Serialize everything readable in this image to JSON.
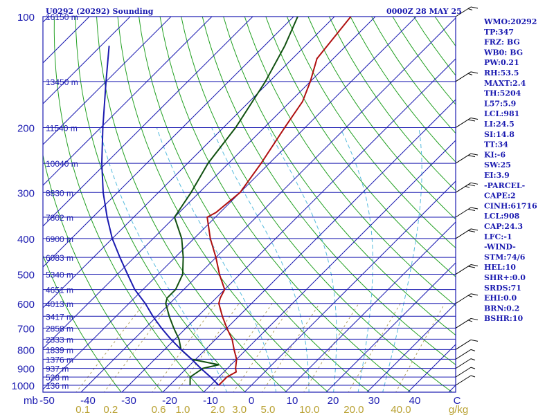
{
  "header": {
    "title": "U0292 (20292) Sounding",
    "time": "0000Z 28 MAY 25"
  },
  "indices": [
    "WMO:20292",
    "TP:347",
    "FRZ: BG",
    "WB0: BG",
    "PW:0.21",
    "RH:53.5",
    "MAXT:2.4",
    "TH:5204",
    "L57:5.9",
    "LCL:981",
    "LI:24.5",
    "SI:14.8",
    "TT:34",
    "KI:-6",
    "SW:25",
    "EI:3.9",
    "-PARCEL-",
    "CAPE:2",
    "CINH:61716",
    "LCL:908",
    "CAP:24.3",
    "LFC:-1",
    "-WIND-",
    "STM:74/6",
    "HEL:10",
    "SHR+:0.0",
    "SRDS:71",
    "EHI:0.0",
    "BRN:0.2",
    "BSHR:10"
  ],
  "colors": {
    "isobar": "#1a1ab0",
    "isotherm": "#1a1ab0",
    "dry_adiabat": "#22a022",
    "moist_adiabat": "#55bbdd",
    "mixing_ratio": "#b0a060",
    "temperature": "#b01010",
    "dewpoint": "#105010",
    "parcel": "#1a1ab0"
  },
  "chart_data": {
    "type": "line",
    "title": "U0292 (20292) Sounding",
    "subtitle": "0000Z 28 MAY 25",
    "xlabel": "C",
    "x_unit_label": "mb",
    "mixing_unit": "g/kg",
    "xlim": [
      -50,
      50
    ],
    "pressure_ticks": [
      100,
      200,
      300,
      400,
      500,
      600,
      700,
      800,
      900,
      1000
    ],
    "temperature_ticks": [
      -50,
      -40,
      -30,
      -20,
      -10,
      0,
      10,
      20,
      30,
      40
    ],
    "temperature_tick_labels": [
      "-50",
      "-40",
      "-30",
      "-20",
      "-10",
      "0",
      "10",
      "20",
      "30",
      "40"
    ],
    "mixing_ratio_labels": [
      "0.1",
      "0.2",
      "0.6",
      "1.0",
      "2.0",
      "3.0",
      "5.0",
      "10.0",
      "20.0",
      "40.0"
    ],
    "mixing_ratio_values": [
      0.1,
      0.2,
      0.6,
      1.0,
      2.0,
      3.0,
      5.0,
      10.0,
      20.0,
      40.0
    ],
    "height_levels": [
      {
        "p": 100,
        "label": "16150 m"
      },
      {
        "p": 150,
        "label": "13450 m"
      },
      {
        "p": 200,
        "label": "11540 m"
      },
      {
        "p": 250,
        "label": "10040 m"
      },
      {
        "p": 300,
        "label": "8830 m"
      },
      {
        "p": 350,
        "label": "7802 m"
      },
      {
        "p": 400,
        "label": "6900 m"
      },
      {
        "p": 450,
        "label": "6083 m"
      },
      {
        "p": 500,
        "label": "5340 m"
      },
      {
        "p": 550,
        "label": "4651 m"
      },
      {
        "p": 600,
        "label": "4013 m"
      },
      {
        "p": 650,
        "label": "3417 m"
      },
      {
        "p": 700,
        "label": "2858 m"
      },
      {
        "p": 750,
        "label": "2333 m"
      },
      {
        "p": 800,
        "label": "1839 m"
      },
      {
        "p": 850,
        "label": "1376 m"
      },
      {
        "p": 900,
        "label": "937 m"
      },
      {
        "p": 950,
        "label": "528 m"
      },
      {
        "p": 1000,
        "label": "136 m"
      }
    ],
    "series": [
      {
        "key": "temperature",
        "points": [
          {
            "p": 1000,
            "t": -8
          },
          {
            "p": 950,
            "t": -8
          },
          {
            "p": 920,
            "t": -7
          },
          {
            "p": 900,
            "t": -8
          },
          {
            "p": 850,
            "t": -10
          },
          {
            "p": 800,
            "t": -13
          },
          {
            "p": 750,
            "t": -16
          },
          {
            "p": 700,
            "t": -20
          },
          {
            "p": 650,
            "t": -24
          },
          {
            "p": 600,
            "t": -28
          },
          {
            "p": 580,
            "t": -29
          },
          {
            "p": 550,
            "t": -30
          },
          {
            "p": 500,
            "t": -35
          },
          {
            "p": 450,
            "t": -40
          },
          {
            "p": 400,
            "t": -46
          },
          {
            "p": 350,
            "t": -52
          },
          {
            "p": 340,
            "t": -51
          },
          {
            "p": 300,
            "t": -50
          },
          {
            "p": 250,
            "t": -52
          },
          {
            "p": 200,
            "t": -55
          },
          {
            "p": 170,
            "t": -57
          },
          {
            "p": 150,
            "t": -60
          },
          {
            "p": 130,
            "t": -64
          },
          {
            "p": 100,
            "t": -66
          }
        ]
      },
      {
        "key": "dewpoint",
        "points": [
          {
            "p": 1000,
            "t": -15
          },
          {
            "p": 950,
            "t": -17
          },
          {
            "p": 900,
            "t": -16
          },
          {
            "p": 880,
            "t": -13
          },
          {
            "p": 850,
            "t": -21
          },
          {
            "p": 800,
            "t": -26
          },
          {
            "p": 750,
            "t": -29
          },
          {
            "p": 700,
            "t": -33
          },
          {
            "p": 650,
            "t": -37
          },
          {
            "p": 600,
            "t": -41
          },
          {
            "p": 580,
            "t": -42
          },
          {
            "p": 550,
            "t": -42
          },
          {
            "p": 500,
            "t": -44
          },
          {
            "p": 450,
            "t": -48
          },
          {
            "p": 400,
            "t": -53
          },
          {
            "p": 350,
            "t": -60
          },
          {
            "p": 300,
            "t": -62
          },
          {
            "p": 250,
            "t": -65
          },
          {
            "p": 200,
            "t": -67
          },
          {
            "p": 150,
            "t": -71
          },
          {
            "p": 120,
            "t": -75
          },
          {
            "p": 100,
            "t": -79
          }
        ]
      },
      {
        "key": "parcel",
        "points": [
          {
            "p": 1000,
            "t": -8
          },
          {
            "p": 950,
            "t": -12
          },
          {
            "p": 900,
            "t": -16.5
          },
          {
            "p": 850,
            "t": -21
          },
          {
            "p": 800,
            "t": -26
          },
          {
            "p": 750,
            "t": -31
          },
          {
            "p": 700,
            "t": -36
          },
          {
            "p": 650,
            "t": -41
          },
          {
            "p": 600,
            "t": -46
          },
          {
            "p": 550,
            "t": -52
          },
          {
            "p": 500,
            "t": -57.5
          },
          {
            "p": 450,
            "t": -63.5
          },
          {
            "p": 400,
            "t": -70
          },
          {
            "p": 350,
            "t": -76.5
          },
          {
            "p": 300,
            "t": -83.5
          },
          {
            "p": 250,
            "t": -91
          },
          {
            "p": 200,
            "t": -99.5
          },
          {
            "p": 150,
            "t": -110
          },
          {
            "p": 120,
            "t": -118
          }
        ]
      }
    ],
    "wind_barbs": [
      {
        "p": 1000,
        "speed": 5
      },
      {
        "p": 950,
        "speed": 5
      },
      {
        "p": 900,
        "speed": 5
      },
      {
        "p": 850,
        "speed": 5
      },
      {
        "p": 800,
        "speed": 10
      },
      {
        "p": 700,
        "speed": 15
      },
      {
        "p": 600,
        "speed": 15
      },
      {
        "p": 500,
        "speed": 20
      },
      {
        "p": 400,
        "speed": 20
      },
      {
        "p": 350,
        "speed": 20
      },
      {
        "p": 300,
        "speed": 25
      },
      {
        "p": 250,
        "speed": 20
      },
      {
        "p": 200,
        "speed": 20
      },
      {
        "p": 150,
        "speed": 15
      },
      {
        "p": 100,
        "speed": 15
      }
    ]
  }
}
